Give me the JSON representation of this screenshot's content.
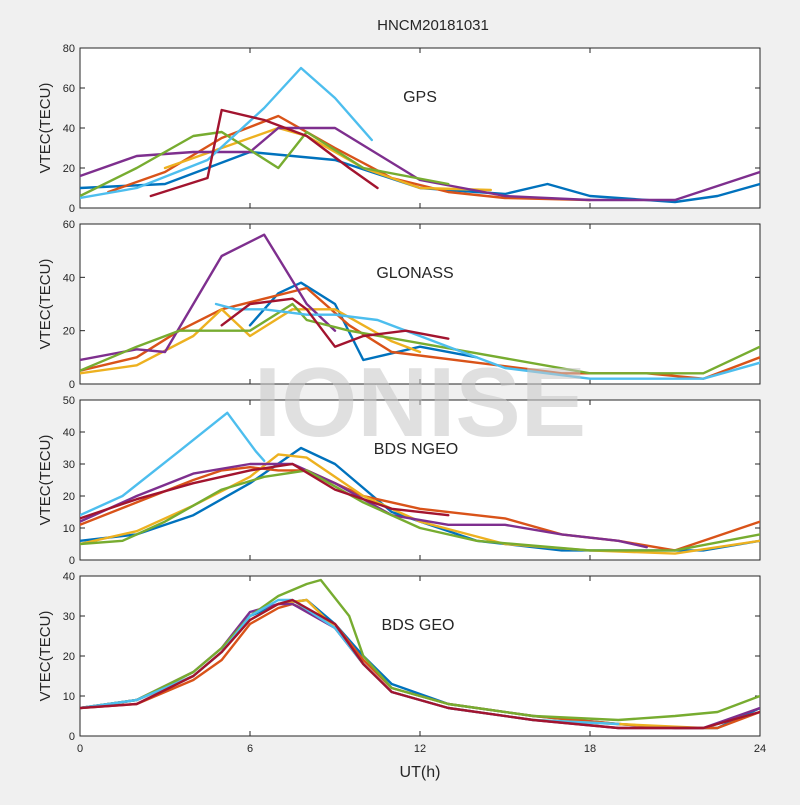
{
  "chart_data": {
    "type": "line",
    "title": "HNCM20181031",
    "watermark": "IONISE",
    "xlabel": "UT(h)",
    "xlim": [
      0,
      24
    ],
    "xticks": [
      0,
      6,
      12,
      18,
      24
    ],
    "colors": [
      "#0072BD",
      "#D95319",
      "#EDB120",
      "#7E2F8E",
      "#77AC30",
      "#4DBEEE",
      "#A2142F"
    ],
    "panels": [
      {
        "label": "GPS",
        "ylabel": "VTEC(TECU)",
        "ylim": [
          0,
          80
        ],
        "yticks": [
          0,
          20,
          40,
          60,
          80
        ],
        "series": [
          {
            "x": [
              0,
              3,
              6,
              9,
              12,
              15,
              16.5,
              18,
              21,
              22.5,
              24
            ],
            "y": [
              10,
              12,
              28,
              24,
              10,
              7,
              12,
              6,
              3,
              6,
              12
            ]
          },
          {
            "x": [
              1,
              3,
              5,
              7,
              9,
              11,
              13,
              15,
              18
            ],
            "y": [
              8,
              18,
              35,
              46,
              30,
              15,
              8,
              5,
              4
            ]
          },
          {
            "x": [
              3,
              5,
              7,
              8,
              10,
              12,
              14.5
            ],
            "y": [
              20,
              30,
              40,
              36,
              20,
              10,
              9
            ]
          },
          {
            "x": [
              0,
              2,
              4,
              6,
              7,
              9,
              12,
              15,
              18,
              21,
              24
            ],
            "y": [
              16,
              26,
              28,
              28,
              40,
              40,
              14,
              6,
              4,
              4,
              18
            ]
          },
          {
            "x": [
              0,
              2,
              4,
              5,
              7,
              8,
              10,
              13
            ],
            "y": [
              6,
              20,
              36,
              38,
              20,
              38,
              20,
              12
            ]
          },
          {
            "x": [
              0,
              2,
              4.5,
              6.5,
              7.8,
              9,
              10.3
            ],
            "y": [
              5,
              10,
              24,
              50,
              70,
              55,
              34
            ]
          },
          {
            "x": [
              2.5,
              4.5,
              5,
              6.5,
              8,
              9.5,
              10.5
            ],
            "y": [
              6,
              15,
              49,
              44,
              36,
              20,
              10
            ]
          }
        ]
      },
      {
        "label": "GLONASS",
        "ylabel": "VTEC(TECU)",
        "ylim": [
          0,
          60
        ],
        "yticks": [
          0,
          20,
          40,
          60
        ],
        "series": [
          {
            "x": [
              6,
              7,
              7.8,
              9,
              10,
              12,
              14
            ],
            "y": [
              22,
              34,
              38,
              30,
              9,
              14,
              10
            ]
          },
          {
            "x": [
              0,
              2,
              3.5,
              5,
              6.5,
              8,
              9.5,
              11,
              14,
              17,
              20,
              22,
              24
            ],
            "y": [
              5,
              10,
              20,
              28,
              32,
              36,
              22,
              12,
              8,
              4,
              4,
              2,
              10
            ]
          },
          {
            "x": [
              0,
              2,
              4,
              5,
              6,
              7.5,
              9,
              11,
              12
            ],
            "y": [
              4,
              7,
              18,
              28,
              18,
              28,
              28,
              16,
              12
            ]
          },
          {
            "x": [
              0,
              2,
              3,
              5,
              6.5,
              8,
              9
            ],
            "y": [
              9,
              13,
              12,
              48,
              56,
              30,
              20
            ]
          },
          {
            "x": [
              0,
              2,
              3.5,
              5,
              6,
              7.5,
              8,
              9.5,
              18,
              22,
              24
            ],
            "y": [
              5,
              14,
              20,
              20,
              20,
              30,
              24,
              20,
              4,
              4,
              14
            ]
          },
          {
            "x": [
              4.8,
              5.5,
              6.5,
              8,
              9,
              10.5,
              13,
              15,
              18,
              22,
              24
            ],
            "y": [
              30,
              28,
              28,
              26,
              26,
              24,
              14,
              6,
              2,
              2,
              8
            ]
          },
          {
            "x": [
              5,
              6,
              7.5,
              8,
              9,
              10,
              11.5,
              13
            ],
            "y": [
              22,
              30,
              32,
              28,
              14,
              18,
              20,
              17
            ]
          }
        ]
      },
      {
        "label": "BDS NGEO",
        "ylabel": "VTEC(TECU)",
        "ylim": [
          0,
          50
        ],
        "yticks": [
          0,
          10,
          20,
          30,
          40,
          50
        ],
        "series": [
          {
            "x": [
              0,
              2,
              4,
              6,
              7.8,
              9,
              11,
              14,
              17,
              20,
              22,
              24
            ],
            "y": [
              6,
              8,
              14,
              24,
              35,
              30,
              15,
              6,
              3,
              3,
              3,
              6
            ]
          },
          {
            "x": [
              0,
              2,
              4,
              5,
              6,
              7,
              8,
              10,
              12,
              15,
              17,
              19,
              21,
              24
            ],
            "y": [
              11,
              18,
              25,
              28,
              29,
              28,
              28,
              20,
              16,
              13,
              8,
              6,
              3,
              12
            ]
          },
          {
            "x": [
              0,
              2,
              4,
              6,
              7,
              8,
              10,
              12,
              15,
              18,
              21,
              24
            ],
            "y": [
              5,
              9,
              17,
              26,
              33,
              32,
              20,
              12,
              5,
              3,
              2,
              6
            ]
          },
          {
            "x": [
              0,
              2,
              4,
              6,
              7.5,
              9,
              11,
              13,
              15,
              17,
              19,
              20
            ],
            "y": [
              12,
              20,
              27,
              30,
              30,
              24,
              14,
              11,
              11,
              8,
              6,
              4
            ]
          },
          {
            "x": [
              0,
              1.5,
              3,
              5,
              6.5,
              8,
              10,
              12,
              14,
              18,
              21,
              24
            ],
            "y": [
              5,
              6,
              12,
              22,
              26,
              28,
              18,
              10,
              6,
              3,
              3,
              8
            ]
          },
          {
            "x": [
              0,
              1.5,
              3.5,
              5.2,
              6.2,
              6.5
            ],
            "y": [
              14,
              20,
              34,
              46,
              34,
              31
            ]
          },
          {
            "x": [
              0,
              2,
              4,
              6,
              7.5,
              9,
              11,
              13
            ],
            "y": [
              13,
              19,
              24,
              28,
              30,
              22,
              16,
              14
            ]
          }
        ]
      },
      {
        "label": "BDS GEO",
        "ylabel": "VTEC(TECU)",
        "ylim": [
          0,
          40
        ],
        "yticks": [
          0,
          10,
          20,
          30,
          40
        ],
        "series": [
          {
            "x": [
              0,
              2,
              4,
              5,
              6,
              7,
              8,
              9,
              10,
              11,
              13,
              16,
              19,
              21,
              22.5,
              24
            ],
            "y": [
              7,
              9,
              15,
              21,
              30,
              33,
              34,
              28,
              20,
              13,
              8,
              5,
              3,
              2,
              2,
              7
            ]
          },
          {
            "x": [
              0,
              2,
              4,
              5,
              6,
              7,
              7.5,
              9,
              10,
              11,
              13,
              16,
              19,
              21,
              22.5,
              24
            ],
            "y": [
              7,
              8,
              14,
              19,
              28,
              32,
              33,
              28,
              19,
              12,
              8,
              5,
              3,
              2,
              2,
              6
            ]
          },
          {
            "x": [
              0,
              2,
              4,
              5,
              6,
              7,
              8,
              9,
              10,
              11,
              13,
              16,
              19,
              22,
              24
            ],
            "y": [
              7,
              9,
              15,
              21,
              29,
              33,
              34,
              27,
              18,
              11,
              7,
              4,
              3,
              2,
              6
            ]
          },
          {
            "x": [
              0,
              2,
              4,
              5,
              6,
              7,
              7.5,
              9,
              10,
              11,
              13,
              16,
              19,
              22,
              24
            ],
            "y": [
              7,
              9,
              16,
              22,
              31,
              33,
              33,
              27,
              18,
              11,
              7,
              4,
              2,
              2,
              7
            ]
          },
          {
            "x": [
              0,
              2,
              4,
              5,
              6,
              7,
              8,
              8.5,
              9.5,
              10,
              11,
              13,
              16,
              19,
              21,
              22.5,
              24
            ],
            "y": [
              7,
              9,
              16,
              22,
              30,
              35,
              38,
              39,
              30,
              20,
              12,
              8,
              5,
              4,
              5,
              6,
              10
            ]
          },
          {
            "x": [
              0,
              2,
              4,
              5,
              6,
              7,
              7.5,
              9,
              10,
              11,
              13,
              16,
              19
            ],
            "y": [
              7,
              9,
              15,
              21,
              30,
              34,
              34,
              27,
              18,
              11,
              7,
              4,
              3
            ]
          },
          {
            "x": [
              0,
              2,
              4,
              5,
              6,
              7,
              7.5,
              9,
              10,
              11,
              13,
              16,
              19,
              22,
              24
            ],
            "y": [
              7,
              8,
              15,
              21,
              29,
              33,
              34,
              28,
              18,
              11,
              7,
              4,
              2,
              2,
              6
            ]
          }
        ]
      }
    ]
  }
}
